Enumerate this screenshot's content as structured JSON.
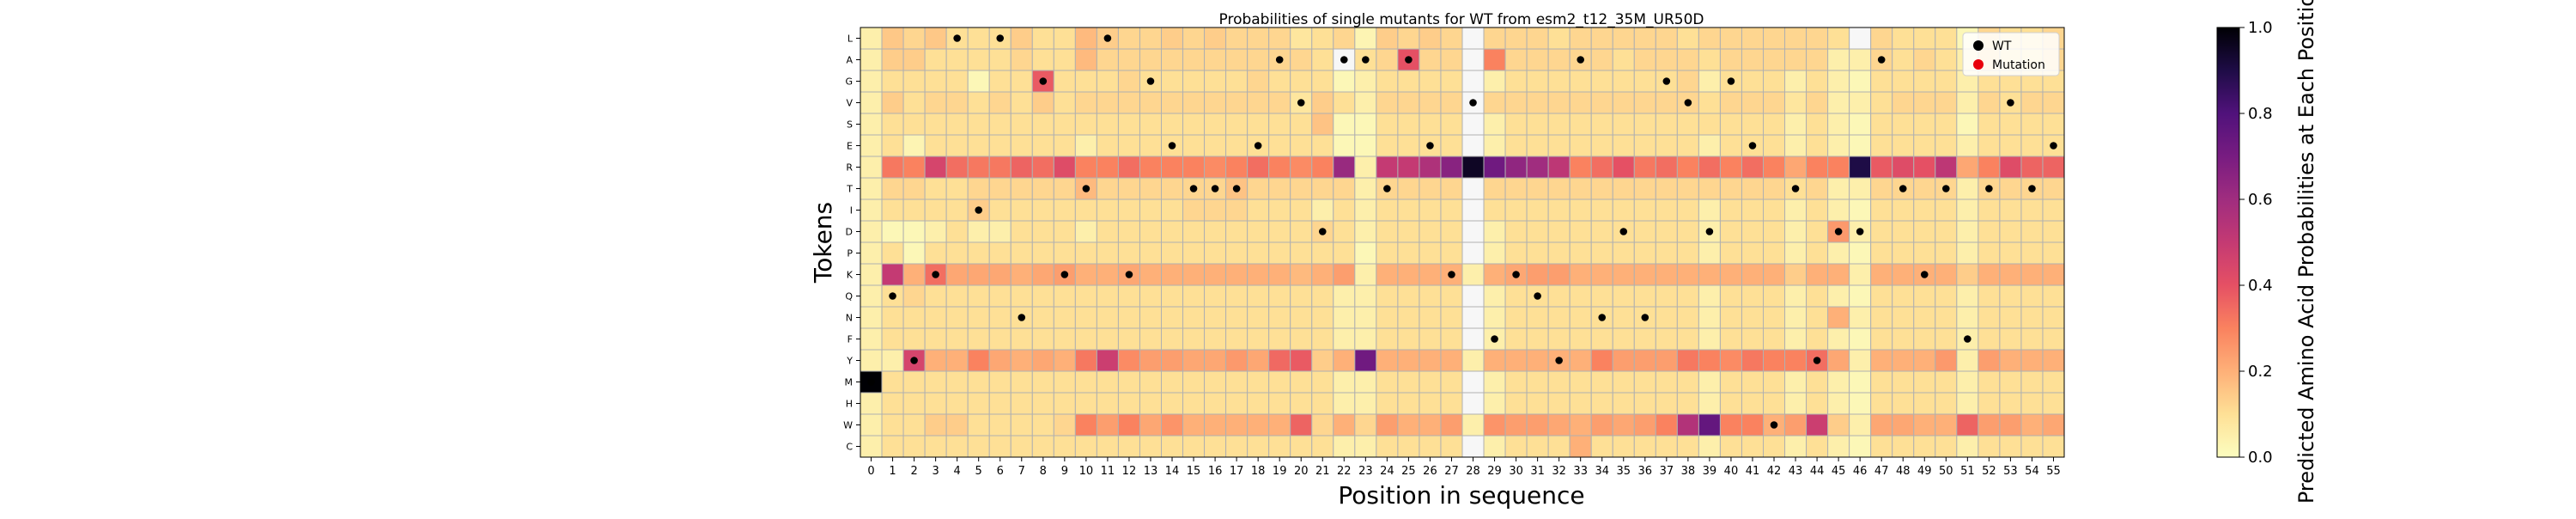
{
  "chart_data": {
    "type": "heatmap",
    "title": "Probabilities of single mutants for WT from esm2_t12_35M_UR50D",
    "xlabel": "Position in sequence",
    "ylabel": "Tokens",
    "x_categories": [
      "0",
      "1",
      "2",
      "3",
      "4",
      "5",
      "6",
      "7",
      "8",
      "9",
      "10",
      "11",
      "12",
      "13",
      "14",
      "15",
      "16",
      "17",
      "18",
      "19",
      "20",
      "21",
      "22",
      "23",
      "24",
      "25",
      "26",
      "27",
      "28",
      "29",
      "30",
      "31",
      "32",
      "33",
      "34",
      "35",
      "36",
      "37",
      "38",
      "39",
      "40",
      "41",
      "42",
      "43",
      "44",
      "45",
      "46",
      "47",
      "48",
      "49",
      "50",
      "51",
      "52",
      "53",
      "54",
      "55"
    ],
    "y_categories": [
      "L",
      "A",
      "G",
      "V",
      "S",
      "E",
      "R",
      "T",
      "I",
      "D",
      "P",
      "K",
      "Q",
      "N",
      "F",
      "Y",
      "M",
      "H",
      "W",
      "C"
    ],
    "grid": true,
    "legend": {
      "placement": "top-right",
      "entries": [
        {
          "label": "WT",
          "color": "#000000"
        },
        {
          "label": "Mutation",
          "color": "#e8000b"
        }
      ]
    },
    "colorbar": {
      "label": "Predicted Amino Acid Probabilities at Each Position",
      "colormap": "magma_r",
      "range": [
        0.0,
        1.0
      ],
      "ticks": [
        "0.0",
        "0.2",
        "0.4",
        "0.6",
        "0.8",
        "1.0"
      ]
    },
    "wt_residue_index": [
      16,
      12,
      15,
      11,
      0,
      8,
      0,
      13,
      2,
      11,
      7,
      0,
      11,
      2,
      5,
      7,
      7,
      7,
      5,
      1,
      3,
      9,
      1,
      1,
      7,
      1,
      5,
      11,
      3,
      14,
      11,
      12,
      15,
      1,
      13,
      9,
      13,
      2,
      3,
      9,
      2,
      5,
      18,
      7,
      15,
      9,
      9,
      1,
      7,
      11,
      7,
      14,
      7,
      3,
      7,
      5
    ],
    "values": [
      [
        0.05,
        0.15,
        0.12,
        0.15,
        0.1,
        0.1,
        0.1,
        0.14,
        0.1,
        0.1,
        0.18,
        0.14,
        0.12,
        0.12,
        0.14,
        0.12,
        0.14,
        0.12,
        0.12,
        0.12,
        0.08,
        0.1,
        0.12,
        0.03,
        0.14,
        0.12,
        0.14,
        0.12,
        0.0,
        0.12,
        0.12,
        0.12,
        0.1,
        0.12,
        0.12,
        0.12,
        0.12,
        0.12,
        0.1,
        0.12,
        0.12,
        0.12,
        0.12,
        0.12,
        0.12,
        0.1,
        0.0,
        0.12,
        0.1,
        0.1,
        0.1,
        0.02,
        0.12,
        0.1,
        0.1,
        0.12
      ],
      [
        0.05,
        0.14,
        0.14,
        0.1,
        0.1,
        0.1,
        0.1,
        0.12,
        0.1,
        0.1,
        0.18,
        0.12,
        0.12,
        0.12,
        0.12,
        0.12,
        0.12,
        0.12,
        0.12,
        0.12,
        0.12,
        0.1,
        0.0,
        0.1,
        0.12,
        0.4,
        0.12,
        0.12,
        0.0,
        0.3,
        0.12,
        0.12,
        0.12,
        0.12,
        0.12,
        0.1,
        0.12,
        0.12,
        0.12,
        0.1,
        0.12,
        0.12,
        0.12,
        0.12,
        0.12,
        0.05,
        0.05,
        0.12,
        0.1,
        0.12,
        0.1,
        0.05,
        0.12,
        0.1,
        0.1,
        0.12
      ],
      [
        0.05,
        0.1,
        0.1,
        0.1,
        0.1,
        0.02,
        0.1,
        0.1,
        0.38,
        0.1,
        0.1,
        0.1,
        0.12,
        0.1,
        0.1,
        0.1,
        0.1,
        0.1,
        0.12,
        0.1,
        0.1,
        0.1,
        0.02,
        0.05,
        0.1,
        0.1,
        0.1,
        0.1,
        0.0,
        0.05,
        0.1,
        0.1,
        0.1,
        0.1,
        0.1,
        0.1,
        0.1,
        0.1,
        0.12,
        0.05,
        0.1,
        0.1,
        0.1,
        0.05,
        0.1,
        0.05,
        0.02,
        0.1,
        0.1,
        0.1,
        0.1,
        0.05,
        0.1,
        0.1,
        0.1,
        0.1
      ],
      [
        0.05,
        0.14,
        0.1,
        0.12,
        0.12,
        0.1,
        0.12,
        0.1,
        0.14,
        0.1,
        0.12,
        0.12,
        0.12,
        0.12,
        0.12,
        0.12,
        0.12,
        0.12,
        0.12,
        0.12,
        0.08,
        0.14,
        0.1,
        0.05,
        0.12,
        0.12,
        0.12,
        0.12,
        0.0,
        0.12,
        0.12,
        0.12,
        0.12,
        0.12,
        0.12,
        0.12,
        0.12,
        0.12,
        0.12,
        0.1,
        0.12,
        0.12,
        0.12,
        0.08,
        0.12,
        0.05,
        0.05,
        0.1,
        0.12,
        0.12,
        0.12,
        0.05,
        0.12,
        0.1,
        0.12,
        0.12
      ],
      [
        0.05,
        0.1,
        0.1,
        0.1,
        0.1,
        0.1,
        0.1,
        0.1,
        0.1,
        0.1,
        0.1,
        0.1,
        0.1,
        0.1,
        0.1,
        0.1,
        0.1,
        0.1,
        0.1,
        0.1,
        0.1,
        0.16,
        0.02,
        0.02,
        0.1,
        0.1,
        0.1,
        0.1,
        0.0,
        0.05,
        0.1,
        0.1,
        0.1,
        0.1,
        0.1,
        0.1,
        0.1,
        0.1,
        0.1,
        0.1,
        0.1,
        0.1,
        0.1,
        0.05,
        0.1,
        0.05,
        0.02,
        0.1,
        0.1,
        0.1,
        0.1,
        0.02,
        0.1,
        0.1,
        0.1,
        0.1
      ],
      [
        0.05,
        0.1,
        0.03,
        0.1,
        0.1,
        0.1,
        0.1,
        0.1,
        0.1,
        0.1,
        0.05,
        0.1,
        0.1,
        0.1,
        0.1,
        0.1,
        0.1,
        0.1,
        0.1,
        0.1,
        0.1,
        0.1,
        0.02,
        0.02,
        0.1,
        0.1,
        0.1,
        0.1,
        0.0,
        0.05,
        0.1,
        0.1,
        0.1,
        0.1,
        0.1,
        0.1,
        0.1,
        0.1,
        0.1,
        0.05,
        0.1,
        0.1,
        0.1,
        0.05,
        0.1,
        0.05,
        0.02,
        0.1,
        0.1,
        0.1,
        0.1,
        0.05,
        0.1,
        0.1,
        0.1,
        0.1
      ],
      [
        0.05,
        0.32,
        0.3,
        0.45,
        0.34,
        0.32,
        0.32,
        0.36,
        0.34,
        0.42,
        0.3,
        0.3,
        0.34,
        0.3,
        0.3,
        0.3,
        0.28,
        0.3,
        0.34,
        0.3,
        0.28,
        0.3,
        0.62,
        0.05,
        0.5,
        0.5,
        0.56,
        0.66,
        0.95,
        0.72,
        0.64,
        0.6,
        0.52,
        0.3,
        0.34,
        0.4,
        0.32,
        0.34,
        0.3,
        0.34,
        0.3,
        0.34,
        0.3,
        0.22,
        0.3,
        0.3,
        0.9,
        0.38,
        0.42,
        0.4,
        0.52,
        0.22,
        0.3,
        0.42,
        0.36,
        0.36
      ],
      [
        0.05,
        0.12,
        0.12,
        0.1,
        0.1,
        0.12,
        0.12,
        0.12,
        0.12,
        0.12,
        0.18,
        0.12,
        0.12,
        0.12,
        0.12,
        0.12,
        0.12,
        0.16,
        0.12,
        0.12,
        0.12,
        0.12,
        0.12,
        0.05,
        0.12,
        0.12,
        0.12,
        0.12,
        0.0,
        0.12,
        0.12,
        0.12,
        0.12,
        0.12,
        0.12,
        0.12,
        0.12,
        0.12,
        0.12,
        0.12,
        0.12,
        0.12,
        0.12,
        0.1,
        0.12,
        0.05,
        0.05,
        0.12,
        0.12,
        0.12,
        0.12,
        0.05,
        0.12,
        0.12,
        0.12,
        0.12
      ],
      [
        0.05,
        0.1,
        0.1,
        0.1,
        0.1,
        0.14,
        0.1,
        0.1,
        0.1,
        0.1,
        0.1,
        0.1,
        0.1,
        0.1,
        0.1,
        0.12,
        0.12,
        0.12,
        0.1,
        0.1,
        0.1,
        0.05,
        0.1,
        0.05,
        0.1,
        0.1,
        0.1,
        0.1,
        0.0,
        0.1,
        0.1,
        0.1,
        0.1,
        0.1,
        0.1,
        0.1,
        0.1,
        0.1,
        0.1,
        0.05,
        0.1,
        0.1,
        0.1,
        0.05,
        0.1,
        0.05,
        0.02,
        0.1,
        0.1,
        0.1,
        0.1,
        0.05,
        0.1,
        0.1,
        0.1,
        0.1
      ],
      [
        0.05,
        0.02,
        0.02,
        0.05,
        0.1,
        0.05,
        0.05,
        0.1,
        0.1,
        0.1,
        0.05,
        0.1,
        0.1,
        0.1,
        0.1,
        0.1,
        0.1,
        0.1,
        0.1,
        0.1,
        0.1,
        0.12,
        0.1,
        0.05,
        0.1,
        0.1,
        0.1,
        0.1,
        0.0,
        0.05,
        0.1,
        0.1,
        0.1,
        0.1,
        0.1,
        0.1,
        0.1,
        0.1,
        0.1,
        0.05,
        0.1,
        0.1,
        0.1,
        0.05,
        0.1,
        0.25,
        0.05,
        0.1,
        0.1,
        0.1,
        0.1,
        0.05,
        0.1,
        0.1,
        0.1,
        0.1
      ],
      [
        0.05,
        0.1,
        0.02,
        0.1,
        0.1,
        0.1,
        0.1,
        0.1,
        0.1,
        0.1,
        0.1,
        0.1,
        0.1,
        0.1,
        0.1,
        0.1,
        0.1,
        0.1,
        0.1,
        0.1,
        0.1,
        0.1,
        0.1,
        0.02,
        0.1,
        0.1,
        0.1,
        0.1,
        0.0,
        0.05,
        0.1,
        0.1,
        0.1,
        0.1,
        0.1,
        0.1,
        0.1,
        0.1,
        0.1,
        0.05,
        0.1,
        0.1,
        0.1,
        0.05,
        0.1,
        0.05,
        0.02,
        0.1,
        0.1,
        0.1,
        0.1,
        0.05,
        0.1,
        0.1,
        0.1,
        0.1
      ],
      [
        0.05,
        0.5,
        0.2,
        0.34,
        0.22,
        0.22,
        0.22,
        0.2,
        0.22,
        0.24,
        0.2,
        0.2,
        0.22,
        0.2,
        0.2,
        0.2,
        0.2,
        0.2,
        0.2,
        0.2,
        0.18,
        0.2,
        0.24,
        0.05,
        0.2,
        0.2,
        0.2,
        0.2,
        0.05,
        0.2,
        0.22,
        0.24,
        0.24,
        0.2,
        0.2,
        0.2,
        0.2,
        0.2,
        0.2,
        0.2,
        0.2,
        0.2,
        0.2,
        0.14,
        0.2,
        0.2,
        0.05,
        0.2,
        0.2,
        0.2,
        0.2,
        0.14,
        0.2,
        0.2,
        0.2,
        0.2
      ],
      [
        0.05,
        0.1,
        0.12,
        0.1,
        0.1,
        0.1,
        0.1,
        0.1,
        0.1,
        0.1,
        0.1,
        0.1,
        0.1,
        0.1,
        0.1,
        0.1,
        0.1,
        0.1,
        0.1,
        0.1,
        0.1,
        0.1,
        0.05,
        0.05,
        0.1,
        0.1,
        0.1,
        0.1,
        0.0,
        0.05,
        0.1,
        0.1,
        0.1,
        0.1,
        0.1,
        0.1,
        0.1,
        0.1,
        0.1,
        0.05,
        0.1,
        0.1,
        0.1,
        0.05,
        0.1,
        0.05,
        0.02,
        0.1,
        0.1,
        0.1,
        0.1,
        0.05,
        0.1,
        0.1,
        0.1,
        0.1
      ],
      [
        0.05,
        0.1,
        0.1,
        0.1,
        0.1,
        0.1,
        0.1,
        0.1,
        0.1,
        0.1,
        0.1,
        0.1,
        0.1,
        0.1,
        0.1,
        0.1,
        0.1,
        0.1,
        0.1,
        0.1,
        0.1,
        0.1,
        0.05,
        0.05,
        0.1,
        0.1,
        0.1,
        0.1,
        0.0,
        0.05,
        0.1,
        0.1,
        0.1,
        0.1,
        0.1,
        0.1,
        0.1,
        0.1,
        0.1,
        0.05,
        0.1,
        0.1,
        0.1,
        0.05,
        0.1,
        0.2,
        0.05,
        0.1,
        0.1,
        0.1,
        0.1,
        0.05,
        0.1,
        0.1,
        0.1,
        0.1
      ],
      [
        0.05,
        0.1,
        0.1,
        0.1,
        0.1,
        0.1,
        0.1,
        0.1,
        0.1,
        0.1,
        0.1,
        0.1,
        0.1,
        0.1,
        0.1,
        0.1,
        0.1,
        0.1,
        0.1,
        0.1,
        0.1,
        0.1,
        0.05,
        0.05,
        0.1,
        0.1,
        0.1,
        0.1,
        0.0,
        0.05,
        0.1,
        0.1,
        0.1,
        0.1,
        0.1,
        0.1,
        0.1,
        0.1,
        0.1,
        0.05,
        0.1,
        0.1,
        0.1,
        0.05,
        0.1,
        0.05,
        0.02,
        0.1,
        0.1,
        0.1,
        0.1,
        0.05,
        0.1,
        0.1,
        0.1,
        0.1
      ],
      [
        0.05,
        0.05,
        0.45,
        0.2,
        0.2,
        0.3,
        0.22,
        0.2,
        0.22,
        0.2,
        0.32,
        0.48,
        0.28,
        0.24,
        0.24,
        0.22,
        0.22,
        0.25,
        0.22,
        0.35,
        0.38,
        0.14,
        0.2,
        0.72,
        0.2,
        0.2,
        0.2,
        0.2,
        0.05,
        0.2,
        0.2,
        0.2,
        0.2,
        0.2,
        0.3,
        0.24,
        0.24,
        0.24,
        0.32,
        0.3,
        0.28,
        0.32,
        0.3,
        0.3,
        0.34,
        0.22,
        0.05,
        0.2,
        0.2,
        0.2,
        0.25,
        0.05,
        0.24,
        0.2,
        0.2,
        0.2
      ],
      [
        1.0,
        0.1,
        0.1,
        0.1,
        0.1,
        0.1,
        0.1,
        0.1,
        0.1,
        0.1,
        0.1,
        0.1,
        0.1,
        0.1,
        0.1,
        0.1,
        0.1,
        0.1,
        0.1,
        0.1,
        0.1,
        0.1,
        0.05,
        0.05,
        0.1,
        0.1,
        0.1,
        0.1,
        0.0,
        0.05,
        0.1,
        0.1,
        0.1,
        0.1,
        0.1,
        0.1,
        0.1,
        0.1,
        0.1,
        0.05,
        0.1,
        0.1,
        0.1,
        0.05,
        0.1,
        0.05,
        0.02,
        0.1,
        0.1,
        0.1,
        0.1,
        0.05,
        0.1,
        0.1,
        0.1,
        0.1
      ],
      [
        0.05,
        0.1,
        0.1,
        0.1,
        0.1,
        0.1,
        0.1,
        0.1,
        0.1,
        0.1,
        0.1,
        0.1,
        0.1,
        0.1,
        0.1,
        0.1,
        0.1,
        0.1,
        0.1,
        0.1,
        0.1,
        0.1,
        0.05,
        0.05,
        0.1,
        0.1,
        0.1,
        0.1,
        0.0,
        0.05,
        0.1,
        0.1,
        0.1,
        0.1,
        0.1,
        0.1,
        0.1,
        0.1,
        0.1,
        0.05,
        0.1,
        0.1,
        0.1,
        0.05,
        0.1,
        0.05,
        0.02,
        0.1,
        0.1,
        0.1,
        0.1,
        0.05,
        0.1,
        0.1,
        0.1,
        0.1
      ],
      [
        0.05,
        0.1,
        0.1,
        0.14,
        0.14,
        0.1,
        0.1,
        0.1,
        0.1,
        0.12,
        0.3,
        0.24,
        0.3,
        0.22,
        0.26,
        0.2,
        0.2,
        0.2,
        0.2,
        0.2,
        0.36,
        0.12,
        0.2,
        0.12,
        0.24,
        0.2,
        0.2,
        0.24,
        0.05,
        0.26,
        0.24,
        0.24,
        0.22,
        0.2,
        0.24,
        0.22,
        0.24,
        0.3,
        0.55,
        0.75,
        0.3,
        0.3,
        0.2,
        0.24,
        0.48,
        0.14,
        0.05,
        0.22,
        0.22,
        0.2,
        0.2,
        0.36,
        0.24,
        0.24,
        0.2,
        0.22
      ],
      [
        0.05,
        0.1,
        0.1,
        0.1,
        0.1,
        0.1,
        0.1,
        0.1,
        0.1,
        0.1,
        0.1,
        0.1,
        0.1,
        0.1,
        0.1,
        0.1,
        0.1,
        0.1,
        0.1,
        0.1,
        0.1,
        0.1,
        0.05,
        0.05,
        0.1,
        0.1,
        0.1,
        0.1,
        0.0,
        0.05,
        0.1,
        0.1,
        0.1,
        0.2,
        0.1,
        0.1,
        0.1,
        0.1,
        0.1,
        0.05,
        0.1,
        0.1,
        0.1,
        0.05,
        0.1,
        0.05,
        0.02,
        0.1,
        0.1,
        0.1,
        0.1,
        0.05,
        0.1,
        0.1,
        0.1,
        0.1
      ]
    ]
  }
}
